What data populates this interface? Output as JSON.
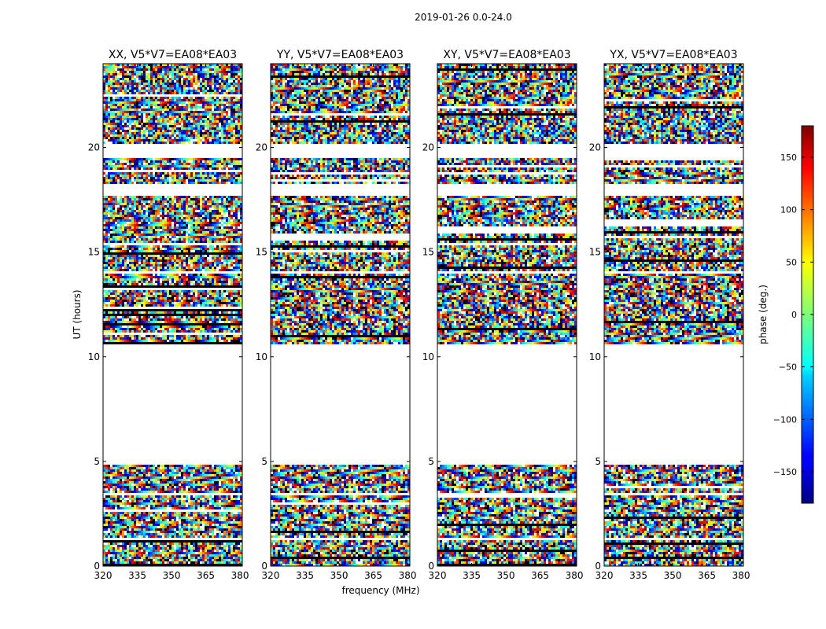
{
  "figure": {
    "suptitle": "2019-01-26 0.0-24.0",
    "xlabel": "frequency (MHz)",
    "ylabel": "UT (hours)"
  },
  "chart_data": {
    "type": "heatmap",
    "title": "2019-01-26 0.0-24.0",
    "xlabel": "frequency (MHz)",
    "ylabel": "UT (hours)",
    "xlim": [
      320,
      381
    ],
    "ylim": [
      0,
      24
    ],
    "xticks": [
      320,
      335,
      350,
      365,
      380
    ],
    "yticks": [
      0,
      5,
      10,
      15,
      20
    ],
    "panels": [
      {
        "title": "XX, V5*V7=EA08*EA03"
      },
      {
        "title": "YY, V5*V7=EA08*EA03"
      },
      {
        "title": "XY, V5*V7=EA08*EA03"
      },
      {
        "title": "YX, V5*V7=EA08*EA03"
      }
    ],
    "data_segments_hours": [
      [
        0.0,
        4.9
      ],
      [
        10.6,
        24.0
      ]
    ],
    "gap_hours": [
      [
        4.9,
        10.6
      ],
      [
        17.7,
        18.3
      ],
      [
        19.5,
        20.2
      ],
      [
        14.0,
        14.1
      ],
      [
        3.4,
        3.5
      ],
      [
        1.2,
        1.3
      ]
    ],
    "colorbar": {
      "label": "phase (deg.)",
      "range": [
        -180,
        180
      ],
      "ticks": [
        -150,
        -100,
        -50,
        0,
        50,
        100,
        150
      ],
      "colormap": "jet"
    }
  }
}
